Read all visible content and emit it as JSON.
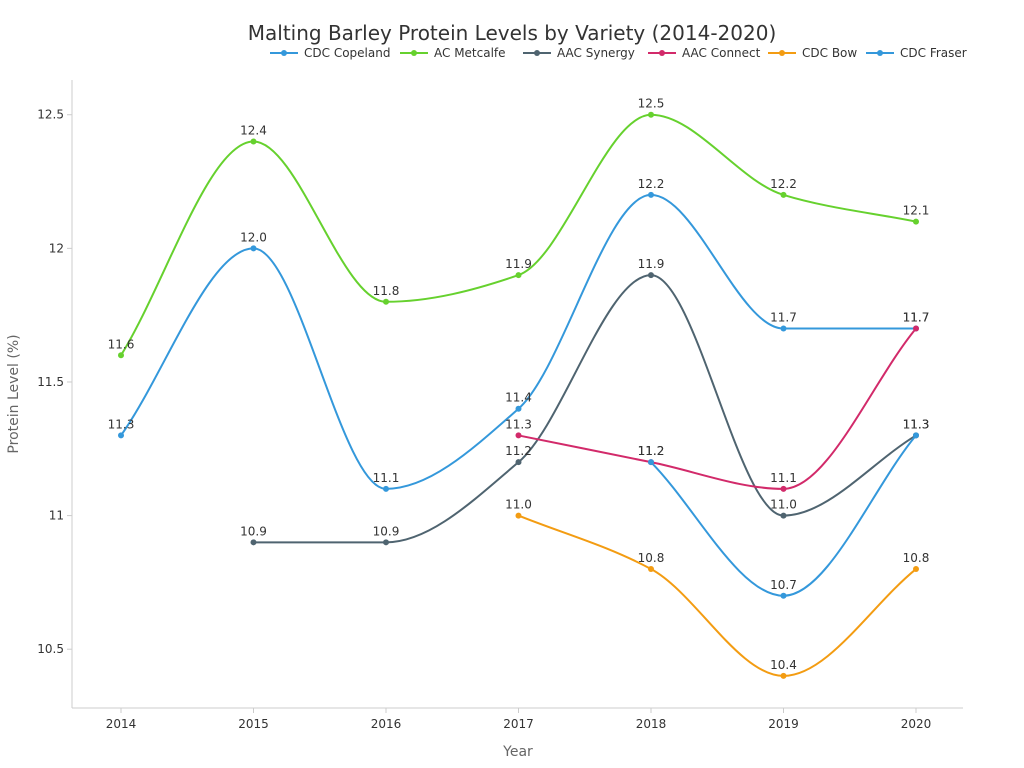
{
  "chart_data": {
    "type": "line",
    "title": "Malting Barley Protein Levels by Variety (2014-2020)",
    "xlabel": "Year",
    "ylabel": "Protein Level (%)",
    "x": [
      "2014",
      "2015",
      "2016",
      "2017",
      "2018",
      "2019",
      "2020"
    ],
    "ylim": [
      10.28,
      12.63
    ],
    "yticks": [
      10.5,
      11,
      11.5,
      12,
      12.5
    ],
    "ytick_labels": [
      "10.5",
      "11",
      "11.5",
      "12",
      "12.5"
    ],
    "legend_position": "top-right",
    "series": [
      {
        "name": "CDC Copeland",
        "color": "#3498db",
        "values": [
          11.3,
          12.0,
          11.1,
          11.4,
          12.2,
          11.7,
          11.7
        ],
        "labels": [
          "11.3",
          "12.0",
          "11.1",
          "11.4",
          "12.2",
          "11.7",
          "11.7"
        ]
      },
      {
        "name": "AC Metcalfe",
        "color": "#66d12e",
        "values": [
          11.6,
          12.4,
          11.8,
          11.9,
          12.5,
          12.2,
          12.1
        ],
        "labels": [
          "11.6",
          "12.4",
          "11.8",
          "11.9",
          "12.5",
          "12.2",
          "12.1"
        ]
      },
      {
        "name": "AAC Synergy",
        "color": "#4f6470",
        "values": [
          null,
          10.9,
          10.9,
          11.2,
          11.9,
          11.0,
          11.3
        ],
        "labels": [
          null,
          "10.9",
          "10.9",
          "11.2",
          "11.9",
          "11.0",
          "11.3"
        ]
      },
      {
        "name": "AAC Connect",
        "color": "#d22a6a",
        "values": [
          null,
          null,
          null,
          11.3,
          11.2,
          11.1,
          11.7
        ],
        "labels": [
          null,
          null,
          null,
          "11.3",
          "11.2",
          "11.1",
          "11.7"
        ]
      },
      {
        "name": "CDC Bow",
        "color": "#f39c12",
        "values": [
          null,
          null,
          null,
          11.0,
          10.8,
          10.4,
          10.8
        ],
        "labels": [
          null,
          null,
          null,
          "11.0",
          "10.8",
          "10.4",
          "10.8"
        ]
      },
      {
        "name": "CDC Fraser",
        "color": "#3498db",
        "values": [
          null,
          null,
          null,
          null,
          11.2,
          10.7,
          11.3
        ],
        "labels": [
          null,
          null,
          null,
          null,
          "11.2",
          "10.7",
          "11.3"
        ]
      }
    ]
  }
}
